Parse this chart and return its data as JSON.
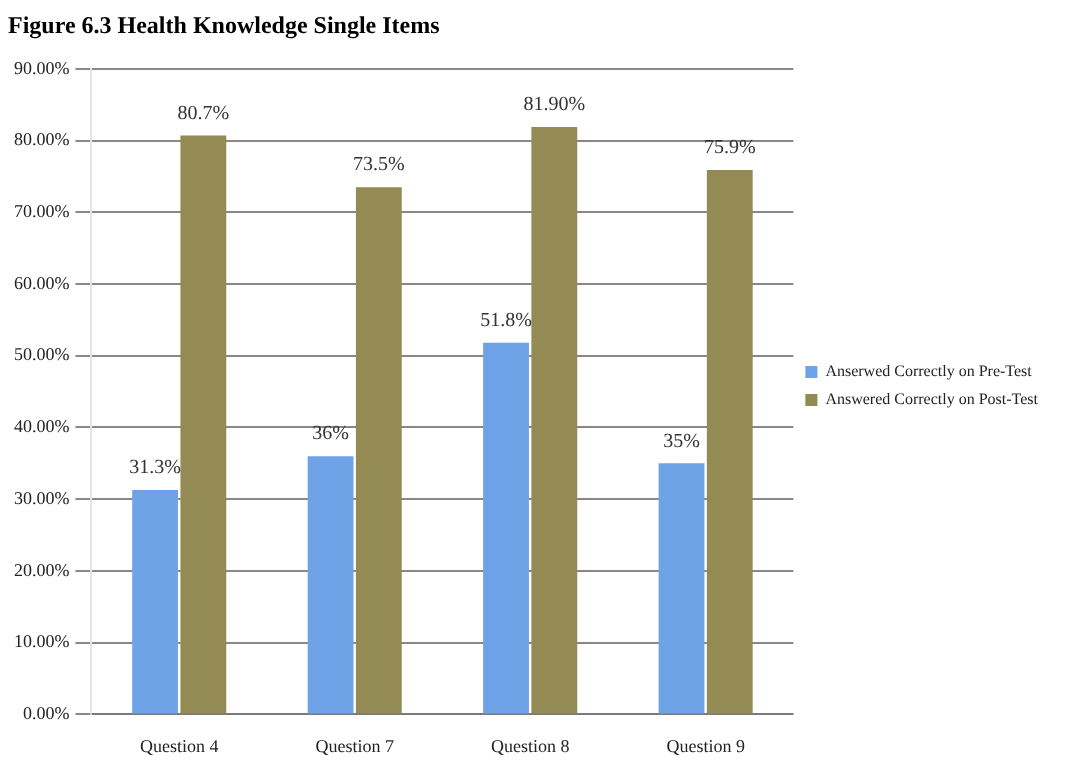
{
  "chart_data": {
    "type": "bar",
    "title": "Figure 6.3 Health Knowledge Single Items",
    "categories": [
      "Question 4",
      "Question 7",
      "Question 8",
      "Question 9"
    ],
    "series": [
      {
        "name": "Anserwed Correctly on Pre-Test",
        "color": "#6fa3e8",
        "values": [
          31.3,
          36,
          51.8,
          35
        ],
        "value_labels": [
          "31.3%",
          "36%",
          "51.8%",
          "35%"
        ]
      },
      {
        "name": "Answered Correctly on Post-Test",
        "color": "#948a54",
        "values": [
          80.7,
          73.5,
          81.9,
          75.9
        ],
        "value_labels": [
          "80.7%",
          "73.5%",
          "81.90%",
          "75.9%"
        ]
      }
    ],
    "ylim": [
      0,
      90
    ],
    "yticks": [
      {
        "value": 0,
        "label": "0.00%"
      },
      {
        "value": 10,
        "label": "10.00%"
      },
      {
        "value": 20,
        "label": "20.00%"
      },
      {
        "value": 30,
        "label": "30.00%"
      },
      {
        "value": 40,
        "label": "40.00%"
      },
      {
        "value": 50,
        "label": "50.00%"
      },
      {
        "value": 60,
        "label": "60.00%"
      },
      {
        "value": 70,
        "label": "70.00%"
      },
      {
        "value": 80,
        "label": "80.00%"
      },
      {
        "value": 90,
        "label": "90.00%"
      }
    ],
    "grid": "y",
    "legend": "right"
  }
}
